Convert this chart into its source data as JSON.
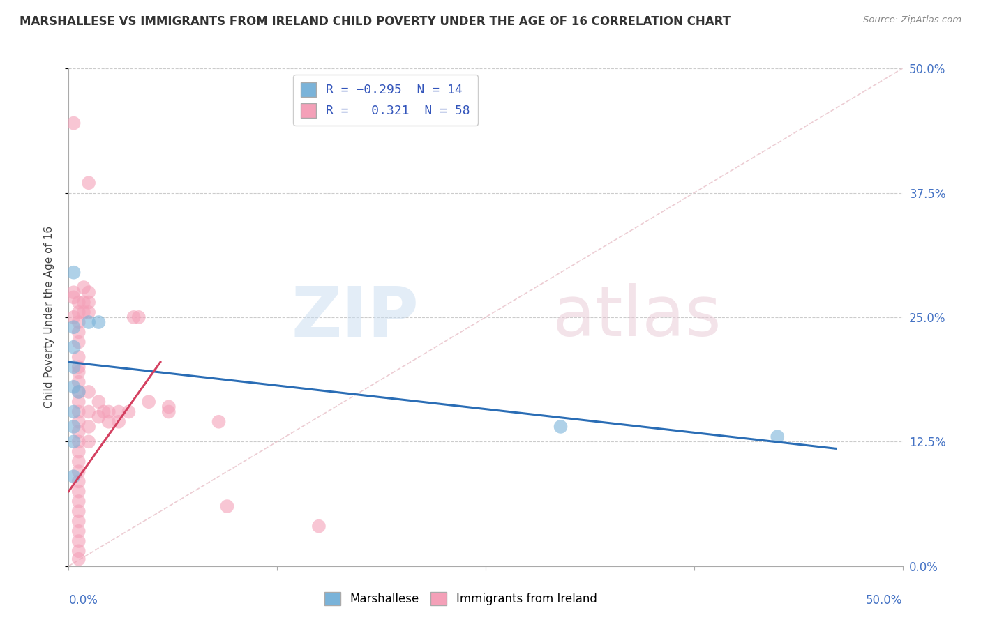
{
  "title": "MARSHALLESE VS IMMIGRANTS FROM IRELAND CHILD POVERTY UNDER THE AGE OF 16 CORRELATION CHART",
  "source": "Source: ZipAtlas.com",
  "ylabel": "Child Poverty Under the Age of 16",
  "xlim": [
    0.0,
    0.5
  ],
  "ylim": [
    0.0,
    0.5
  ],
  "ytick_values": [
    0.0,
    0.125,
    0.25,
    0.375,
    0.5
  ],
  "ytick_labels": [
    "0.0%",
    "12.5%",
    "25.0%",
    "37.5%",
    "50.0%"
  ],
  "xtick_values": [
    0.0,
    0.125,
    0.25,
    0.375,
    0.5
  ],
  "xtick_labels": [
    "0.0%",
    "",
    "",
    "",
    "50.0%"
  ],
  "blue_color": "#7ab3d9",
  "pink_color": "#f4a0b8",
  "blue_line_color": "#2a6db5",
  "pink_line_color": "#d44060",
  "blue_line": {
    "x0": 0.0,
    "y0": 0.205,
    "x1": 0.46,
    "y1": 0.118
  },
  "pink_line": {
    "x0": 0.0,
    "y0": 0.075,
    "x1": 0.055,
    "y1": 0.205
  },
  "diag_line_color": "#e8c0c8",
  "marshallese_points": [
    [
      0.003,
      0.295
    ],
    [
      0.003,
      0.24
    ],
    [
      0.012,
      0.245
    ],
    [
      0.018,
      0.245
    ],
    [
      0.003,
      0.22
    ],
    [
      0.003,
      0.2
    ],
    [
      0.003,
      0.18
    ],
    [
      0.006,
      0.175
    ],
    [
      0.003,
      0.155
    ],
    [
      0.003,
      0.14
    ],
    [
      0.003,
      0.125
    ],
    [
      0.003,
      0.09
    ],
    [
      0.295,
      0.14
    ],
    [
      0.425,
      0.13
    ]
  ],
  "ireland_points": [
    [
      0.003,
      0.445
    ],
    [
      0.012,
      0.385
    ],
    [
      0.003,
      0.275
    ],
    [
      0.003,
      0.27
    ],
    [
      0.006,
      0.265
    ],
    [
      0.006,
      0.255
    ],
    [
      0.003,
      0.25
    ],
    [
      0.009,
      0.28
    ],
    [
      0.009,
      0.265
    ],
    [
      0.009,
      0.255
    ],
    [
      0.006,
      0.245
    ],
    [
      0.006,
      0.235
    ],
    [
      0.006,
      0.225
    ],
    [
      0.012,
      0.275
    ],
    [
      0.012,
      0.265
    ],
    [
      0.012,
      0.255
    ],
    [
      0.006,
      0.21
    ],
    [
      0.006,
      0.2
    ],
    [
      0.006,
      0.195
    ],
    [
      0.006,
      0.185
    ],
    [
      0.006,
      0.175
    ],
    [
      0.006,
      0.165
    ],
    [
      0.006,
      0.155
    ],
    [
      0.006,
      0.145
    ],
    [
      0.006,
      0.135
    ],
    [
      0.006,
      0.125
    ],
    [
      0.006,
      0.115
    ],
    [
      0.006,
      0.105
    ],
    [
      0.006,
      0.095
    ],
    [
      0.006,
      0.085
    ],
    [
      0.006,
      0.075
    ],
    [
      0.006,
      0.065
    ],
    [
      0.006,
      0.055
    ],
    [
      0.006,
      0.045
    ],
    [
      0.006,
      0.035
    ],
    [
      0.006,
      0.025
    ],
    [
      0.006,
      0.015
    ],
    [
      0.006,
      0.007
    ],
    [
      0.012,
      0.175
    ],
    [
      0.012,
      0.155
    ],
    [
      0.012,
      0.14
    ],
    [
      0.012,
      0.125
    ],
    [
      0.018,
      0.165
    ],
    [
      0.018,
      0.15
    ],
    [
      0.021,
      0.155
    ],
    [
      0.024,
      0.155
    ],
    [
      0.024,
      0.145
    ],
    [
      0.03,
      0.155
    ],
    [
      0.03,
      0.145
    ],
    [
      0.036,
      0.155
    ],
    [
      0.039,
      0.25
    ],
    [
      0.042,
      0.25
    ],
    [
      0.048,
      0.165
    ],
    [
      0.06,
      0.16
    ],
    [
      0.06,
      0.155
    ],
    [
      0.09,
      0.145
    ],
    [
      0.095,
      0.06
    ],
    [
      0.15,
      0.04
    ]
  ]
}
